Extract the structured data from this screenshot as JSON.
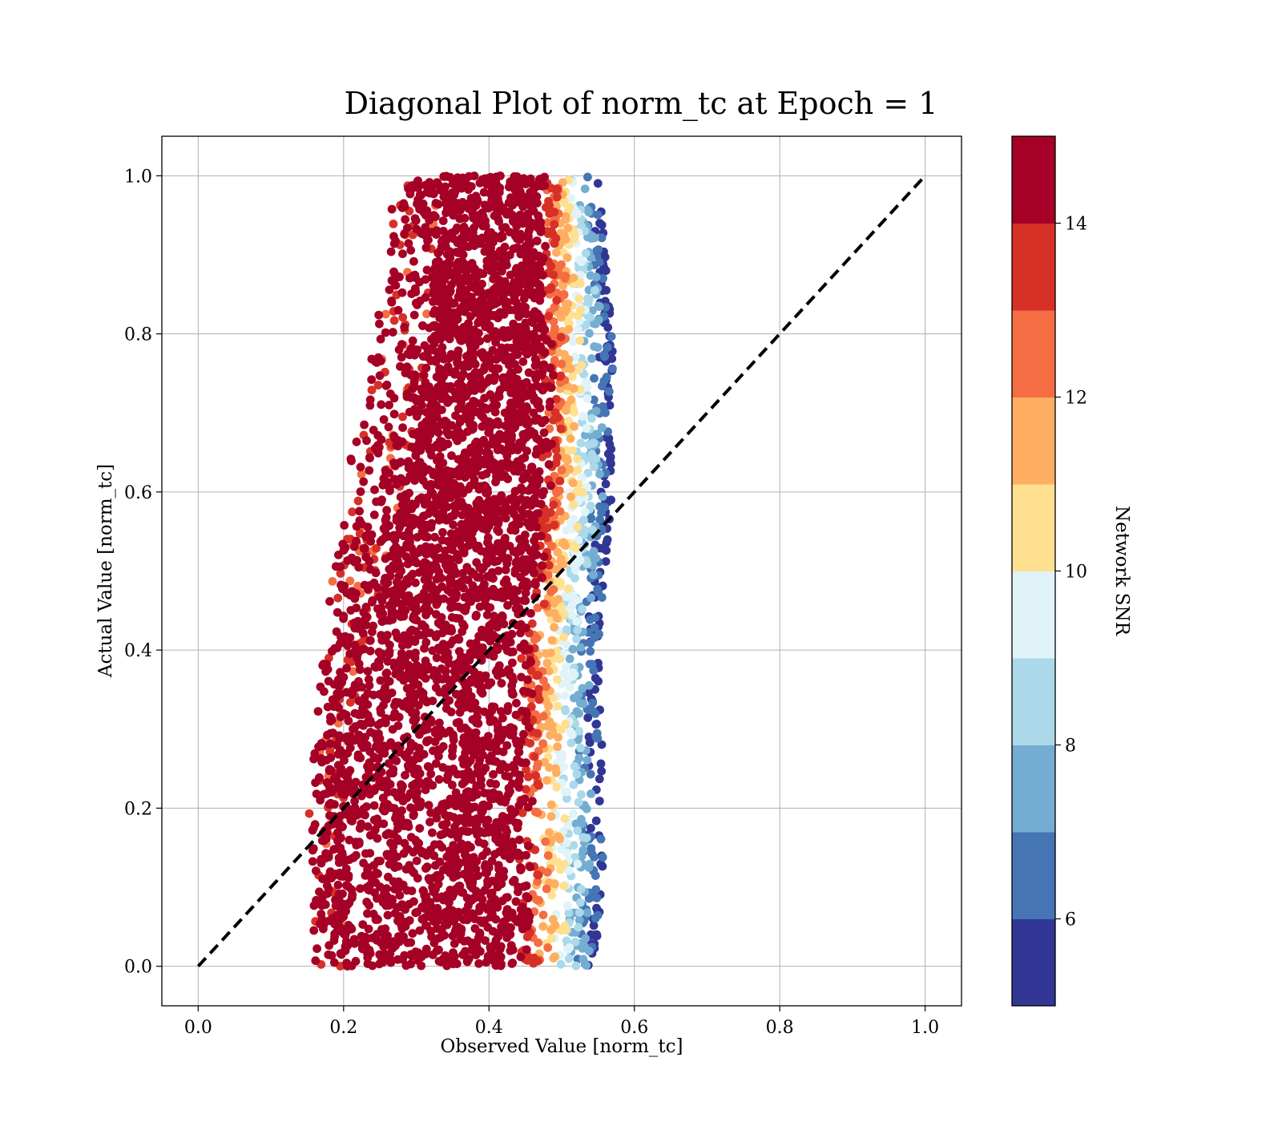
{
  "chart_data": {
    "type": "scatter",
    "title": "Diagonal Plot of norm_tc at Epoch = 1",
    "xlabel": "Observed Value [norm_tc]",
    "ylabel": "Actual Value [norm_tc]",
    "xlim": [
      -0.05,
      1.05
    ],
    "ylim": [
      -0.05,
      1.05
    ],
    "xticks": [
      "0.0",
      "0.2",
      "0.4",
      "0.6",
      "0.8",
      "1.0"
    ],
    "yticks": [
      "0.0",
      "0.2",
      "0.4",
      "0.6",
      "0.8",
      "1.0"
    ],
    "grid": true,
    "reference_line": {
      "x": [
        0,
        1
      ],
      "y": [
        0,
        1
      ],
      "style": "dashed",
      "color": "#000000"
    },
    "colorbar": {
      "label": "Network SNR",
      "range": [
        5,
        15
      ],
      "ticks": [
        "6",
        "8",
        "10",
        "12",
        "14"
      ],
      "colors": [
        "#313695",
        "#4575b4",
        "#74add1",
        "#abd9e9",
        "#e0f3f8",
        "#fee090",
        "#fdae61",
        "#f46d43",
        "#d73027",
        "#a50026"
      ]
    },
    "point_bands": [
      {
        "y": 0.0,
        "x_min": 0.16,
        "x_left_dense": 0.2,
        "x_right_dense": 0.44,
        "x_max": 0.55
      },
      {
        "y": 0.2,
        "x_min": 0.15,
        "x_left_dense": 0.2,
        "x_right_dense": 0.44,
        "x_max": 0.56
      },
      {
        "y": 0.4,
        "x_min": 0.17,
        "x_left_dense": 0.23,
        "x_right_dense": 0.44,
        "x_max": 0.55
      },
      {
        "y": 0.6,
        "x_min": 0.2,
        "x_left_dense": 0.28,
        "x_right_dense": 0.47,
        "x_max": 0.57
      },
      {
        "y": 0.8,
        "x_min": 0.24,
        "x_left_dense": 0.32,
        "x_right_dense": 0.47,
        "x_max": 0.57
      },
      {
        "y": 1.0,
        "x_min": 0.27,
        "x_left_dense": 0.33,
        "x_right_dense": 0.47,
        "x_max": 0.55
      }
    ]
  }
}
